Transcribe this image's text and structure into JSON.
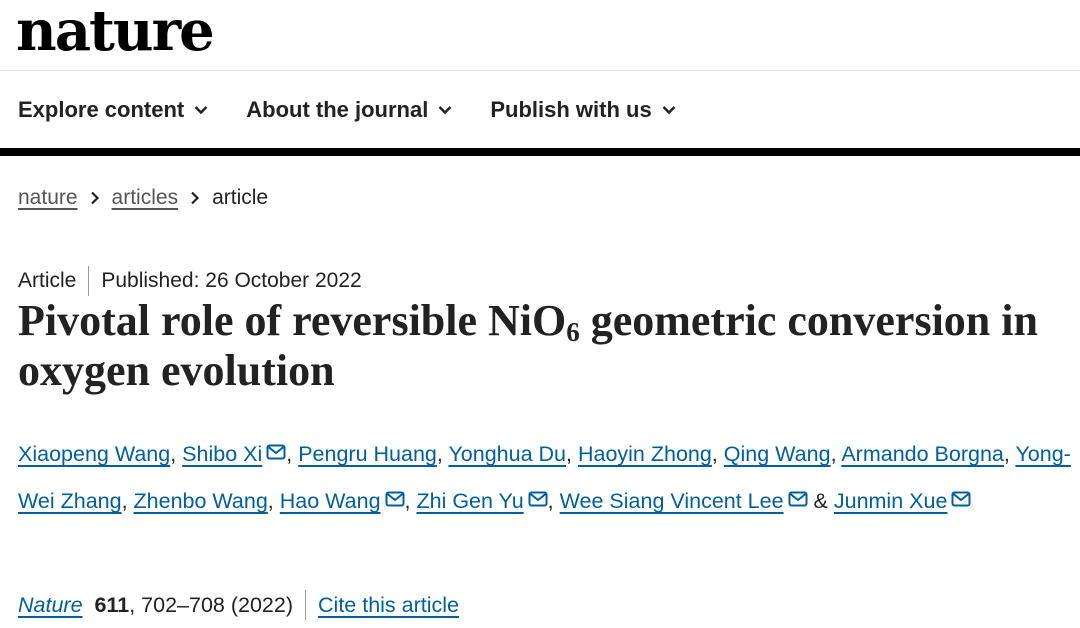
{
  "site": {
    "logo": "nature"
  },
  "nav": [
    {
      "label": "Explore content"
    },
    {
      "label": "About the journal"
    },
    {
      "label": "Publish with us"
    }
  ],
  "breadcrumb": {
    "items": [
      "nature",
      "articles"
    ],
    "current": "article"
  },
  "article": {
    "type": "Article",
    "published": "Published: 26 October 2022",
    "title_part1": "Pivotal role of reversible NiO",
    "title_sub": "6",
    "title_part2": " geometric conversion in oxygen evolution"
  },
  "authors": [
    {
      "name": "Xiaopeng Wang",
      "sep": ", "
    },
    {
      "name": "Shibo Xi",
      "sep": ", "
    },
    {
      "name": "Pengru Huang",
      "sep": ", "
    },
    {
      "name": "Yonghua Du",
      "sep": ", "
    },
    {
      "name": "Haoyin Zhong",
      "sep": ", "
    },
    {
      "name": "Qing Wang",
      "sep": ", "
    },
    {
      "name": "Armando Borgna",
      "sep": ", "
    },
    {
      "name": "Yong-Wei Zhang",
      "sep": ", "
    },
    {
      "name": "Zhenbo Wang",
      "sep": ", "
    },
    {
      "name": "Hao Wang",
      "sep": ", "
    },
    {
      "name": "Zhi Gen Yu",
      "sep": ", "
    },
    {
      "name": "Wee Siang Vincent Lee",
      "sep": " & "
    },
    {
      "name": "Junmin Xue",
      "sep": ""
    }
  ],
  "citation": {
    "journal": "Nature",
    "volume": "611",
    "pages": ", 702–708 (2022)",
    "cite_label": "Cite this article"
  },
  "colors": {
    "link": "#005f9e",
    "text": "#222222",
    "bar": "#000000"
  },
  "icons": {
    "nav_chevron": "chevron-down-icon",
    "breadcrumb_separator": "chevron-right-icon",
    "author_contact": "mail-icon"
  }
}
